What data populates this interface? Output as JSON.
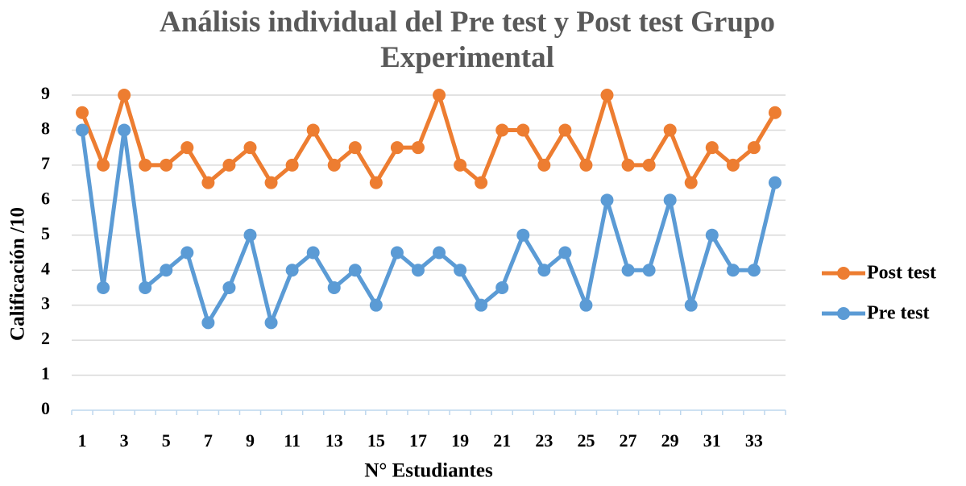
{
  "chart_data": {
    "type": "line",
    "title": "Análisis individual del Pre test y Post test Grupo Experimental",
    "x_label": "N° Estudiantes",
    "y_label": "Calificación /10",
    "categories": [
      "1",
      null,
      "3",
      null,
      "5",
      null,
      "7",
      null,
      "9",
      null,
      "11",
      null,
      "13",
      null,
      "15",
      null,
      "17",
      null,
      "19",
      null,
      "21",
      null,
      "23",
      null,
      "25",
      null,
      "27",
      null,
      "29",
      null,
      "31",
      null,
      "33",
      null
    ],
    "series": [
      {
        "name": "Post test",
        "color": "#ED7D31",
        "values": [
          8.5,
          7,
          9,
          7,
          7,
          7.5,
          6.5,
          7,
          7.5,
          6.5,
          7,
          8,
          7,
          7.5,
          6.5,
          7.5,
          7.5,
          9,
          7,
          6.5,
          8,
          8,
          7,
          8,
          7,
          9,
          7,
          7,
          8,
          6.5,
          7.5,
          7,
          7.5,
          8.5
        ]
      },
      {
        "name": "Pre test",
        "color": "#5B9BD5",
        "values": [
          8,
          3.5,
          8,
          3.5,
          4,
          4.5,
          2.5,
          3.5,
          5,
          2.5,
          4,
          4.5,
          3.5,
          4,
          3,
          4.5,
          4,
          4.5,
          4,
          3,
          3.5,
          5,
          4,
          4.5,
          3,
          6,
          4,
          4,
          6,
          3,
          5,
          4,
          4,
          6.5
        ]
      }
    ],
    "ylim": [
      0,
      9
    ],
    "yticks": [
      0,
      1,
      2,
      3,
      4,
      5,
      6,
      7,
      8,
      9
    ],
    "grid": true,
    "legend": "right"
  }
}
